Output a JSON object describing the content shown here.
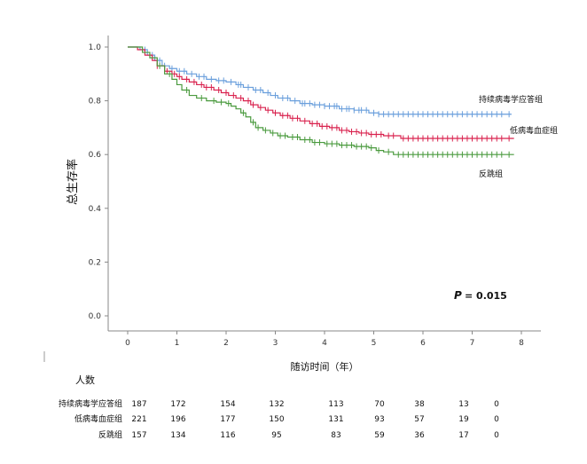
{
  "chart_data": {
    "type": "line",
    "ylabel": "总生存率",
    "xlabel": "随访时间（年）",
    "xlim": [
      0,
      8
    ],
    "ylim": [
      0,
      1
    ],
    "x_ticks": [
      "0",
      "1",
      "2",
      "3",
      "4",
      "5",
      "6",
      "7",
      "8"
    ],
    "y_ticks": [
      "0.0",
      "0.2",
      "0.4",
      "0.6",
      "0.8",
      "1.0"
    ],
    "annotation": {
      "label": "P",
      "value": "= 0.015"
    },
    "grid": false,
    "series": [
      {
        "name": "持续病毒学应答组",
        "color": "#6a9fdc",
        "points": [
          [
            0,
            1.0
          ],
          [
            0.25,
            0.99
          ],
          [
            0.4,
            0.97
          ],
          [
            0.55,
            0.95
          ],
          [
            0.7,
            0.93
          ],
          [
            0.85,
            0.92
          ],
          [
            1.0,
            0.91
          ],
          [
            1.2,
            0.9
          ],
          [
            1.4,
            0.89
          ],
          [
            1.6,
            0.88
          ],
          [
            1.8,
            0.875
          ],
          [
            2.0,
            0.87
          ],
          [
            2.2,
            0.86
          ],
          [
            2.35,
            0.85
          ],
          [
            2.55,
            0.84
          ],
          [
            2.75,
            0.83
          ],
          [
            2.9,
            0.82
          ],
          [
            3.05,
            0.81
          ],
          [
            3.3,
            0.8
          ],
          [
            3.5,
            0.79
          ],
          [
            3.75,
            0.785
          ],
          [
            4.0,
            0.78
          ],
          [
            4.3,
            0.77
          ],
          [
            4.6,
            0.765
          ],
          [
            4.9,
            0.755
          ],
          [
            5.1,
            0.75
          ],
          [
            7.8,
            0.75
          ]
        ],
        "censors": [
          0.35,
          0.5,
          0.65,
          0.75,
          0.9,
          1.05,
          1.15,
          1.3,
          1.45,
          1.55,
          1.7,
          1.85,
          1.95,
          2.1,
          2.25,
          2.3,
          2.45,
          2.6,
          2.7,
          2.85,
          3.0,
          3.15,
          3.25,
          3.4,
          3.55,
          3.6,
          3.7,
          3.8,
          3.9,
          4.0,
          4.1,
          4.2,
          4.25,
          4.35,
          4.45,
          4.5,
          4.6,
          4.7,
          4.75,
          4.85,
          5.0,
          5.1,
          5.2,
          5.3,
          5.4,
          5.5,
          5.6,
          5.7,
          5.8,
          5.9,
          6.0,
          6.1,
          6.2,
          6.3,
          6.4,
          6.5,
          6.6,
          6.7,
          6.8,
          6.9,
          7.0,
          7.1,
          7.2,
          7.3,
          7.4,
          7.5,
          7.6,
          7.75
        ]
      },
      {
        "name": "低病毒血症组",
        "color": "#d9224e",
        "points": [
          [
            0,
            1.0
          ],
          [
            0.2,
            0.99
          ],
          [
            0.35,
            0.97
          ],
          [
            0.5,
            0.95
          ],
          [
            0.6,
            0.93
          ],
          [
            0.75,
            0.91
          ],
          [
            0.9,
            0.9
          ],
          [
            1.0,
            0.89
          ],
          [
            1.1,
            0.88
          ],
          [
            1.25,
            0.87
          ],
          [
            1.4,
            0.86
          ],
          [
            1.55,
            0.85
          ],
          [
            1.75,
            0.84
          ],
          [
            1.9,
            0.83
          ],
          [
            2.05,
            0.82
          ],
          [
            2.2,
            0.81
          ],
          [
            2.35,
            0.8
          ],
          [
            2.5,
            0.785
          ],
          [
            2.65,
            0.775
          ],
          [
            2.8,
            0.765
          ],
          [
            2.95,
            0.755
          ],
          [
            3.1,
            0.745
          ],
          [
            3.3,
            0.735
          ],
          [
            3.5,
            0.725
          ],
          [
            3.7,
            0.715
          ],
          [
            3.9,
            0.705
          ],
          [
            4.1,
            0.7
          ],
          [
            4.3,
            0.69
          ],
          [
            4.5,
            0.685
          ],
          [
            4.7,
            0.68
          ],
          [
            4.9,
            0.675
          ],
          [
            5.2,
            0.67
          ],
          [
            5.55,
            0.66
          ],
          [
            7.85,
            0.66
          ]
        ],
        "censors": [
          0.45,
          0.6,
          0.8,
          0.95,
          1.05,
          1.2,
          1.35,
          1.5,
          1.6,
          1.7,
          1.85,
          2.0,
          2.15,
          2.3,
          2.45,
          2.55,
          2.7,
          2.85,
          3.0,
          3.15,
          3.25,
          3.35,
          3.45,
          3.6,
          3.75,
          3.85,
          3.95,
          4.05,
          4.15,
          4.25,
          4.35,
          4.45,
          4.55,
          4.65,
          4.75,
          4.85,
          4.95,
          5.05,
          5.15,
          5.3,
          5.4,
          5.6,
          5.7,
          5.8,
          5.9,
          6.0,
          6.1,
          6.2,
          6.3,
          6.4,
          6.5,
          6.6,
          6.7,
          6.8,
          6.9,
          7.0,
          7.1,
          7.2,
          7.3,
          7.4,
          7.5,
          7.6,
          7.75
        ]
      },
      {
        "name": "反跳组",
        "color": "#4a9a3e",
        "points": [
          [
            0,
            1.0
          ],
          [
            0.3,
            0.98
          ],
          [
            0.45,
            0.96
          ],
          [
            0.6,
            0.93
          ],
          [
            0.75,
            0.9
          ],
          [
            0.9,
            0.88
          ],
          [
            1.0,
            0.86
          ],
          [
            1.1,
            0.84
          ],
          [
            1.25,
            0.82
          ],
          [
            1.4,
            0.81
          ],
          [
            1.6,
            0.8
          ],
          [
            1.8,
            0.795
          ],
          [
            2.0,
            0.79
          ],
          [
            2.1,
            0.78
          ],
          [
            2.2,
            0.77
          ],
          [
            2.3,
            0.755
          ],
          [
            2.4,
            0.74
          ],
          [
            2.5,
            0.72
          ],
          [
            2.6,
            0.7
          ],
          [
            2.75,
            0.69
          ],
          [
            2.9,
            0.68
          ],
          [
            3.05,
            0.67
          ],
          [
            3.25,
            0.665
          ],
          [
            3.5,
            0.655
          ],
          [
            3.75,
            0.645
          ],
          [
            4.0,
            0.64
          ],
          [
            4.3,
            0.635
          ],
          [
            4.6,
            0.63
          ],
          [
            4.9,
            0.625
          ],
          [
            5.05,
            0.615
          ],
          [
            5.2,
            0.61
          ],
          [
            5.4,
            0.6
          ],
          [
            7.85,
            0.6
          ]
        ],
        "censors": [
          0.65,
          0.85,
          1.2,
          1.5,
          1.75,
          1.9,
          2.05,
          2.35,
          2.55,
          2.65,
          2.8,
          2.95,
          3.1,
          3.2,
          3.35,
          3.45,
          3.6,
          3.7,
          3.8,
          3.9,
          4.05,
          4.15,
          4.25,
          4.35,
          4.45,
          4.55,
          4.65,
          4.75,
          4.85,
          4.95,
          5.1,
          5.3,
          5.5,
          5.6,
          5.7,
          5.8,
          5.9,
          6.0,
          6.1,
          6.2,
          6.3,
          6.4,
          6.5,
          6.6,
          6.7,
          6.8,
          6.9,
          7.0,
          7.1,
          7.2,
          7.3,
          7.4,
          7.5,
          7.6,
          7.75
        ]
      }
    ],
    "risk_table": {
      "title": "人数",
      "columns": [
        "0",
        "1",
        "2",
        "3",
        "4",
        "5",
        "6",
        "7",
        "8"
      ],
      "rows": [
        {
          "name": "持续病毒学应答组",
          "values": [
            "187",
            "172",
            "154",
            "132",
            "113",
            "70",
            "38",
            "13",
            "0"
          ]
        },
        {
          "name": "低病毒血症组",
          "values": [
            "221",
            "196",
            "177",
            "150",
            "131",
            "93",
            "57",
            "19",
            "0"
          ]
        },
        {
          "name": "反跳组",
          "values": [
            "157",
            "134",
            "116",
            "95",
            "83",
            "59",
            "36",
            "17",
            "0"
          ]
        }
      ]
    }
  }
}
